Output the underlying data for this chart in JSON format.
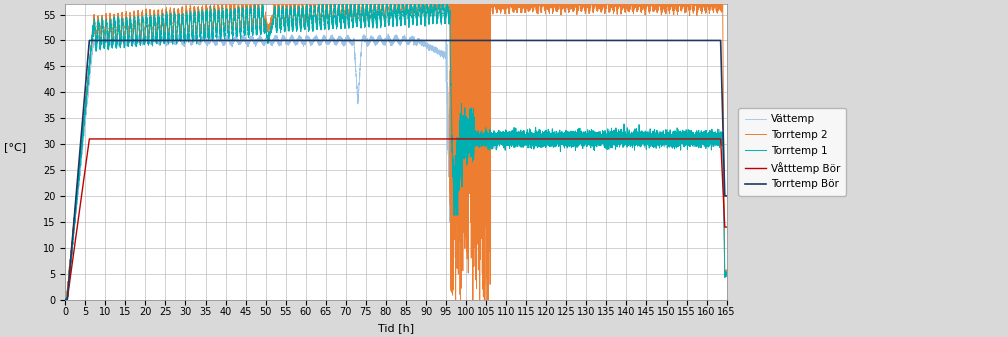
{
  "title": "",
  "xlabel": "Tid [h]",
  "ylabel": "[°C]",
  "xlim": [
    0,
    165
  ],
  "ylim": [
    0,
    57
  ],
  "xticks": [
    0,
    5,
    10,
    15,
    20,
    25,
    30,
    35,
    40,
    45,
    50,
    55,
    60,
    65,
    70,
    75,
    80,
    85,
    90,
    95,
    100,
    105,
    110,
    115,
    120,
    125,
    130,
    135,
    140,
    145,
    150,
    155,
    160,
    165
  ],
  "yticks": [
    0,
    5,
    10,
    15,
    20,
    25,
    30,
    35,
    40,
    45,
    50,
    55
  ],
  "legend": [
    "Torrtemp Bör",
    "Våtttemp Bör",
    "Torrtemp 1",
    "Torrtemp 2",
    "Vättemp"
  ],
  "colors": {
    "torrtemp_bor": "#1F3864",
    "vattemp_bor": "#C00000",
    "torrtemp1": "#00B0B0",
    "torrtemp2": "#ED7D31",
    "vattemp": "#9DC3E6"
  },
  "background_color": "#FFFFFF",
  "grid_color": "#BFBFBF",
  "fig_bg": "#D9D9D9"
}
